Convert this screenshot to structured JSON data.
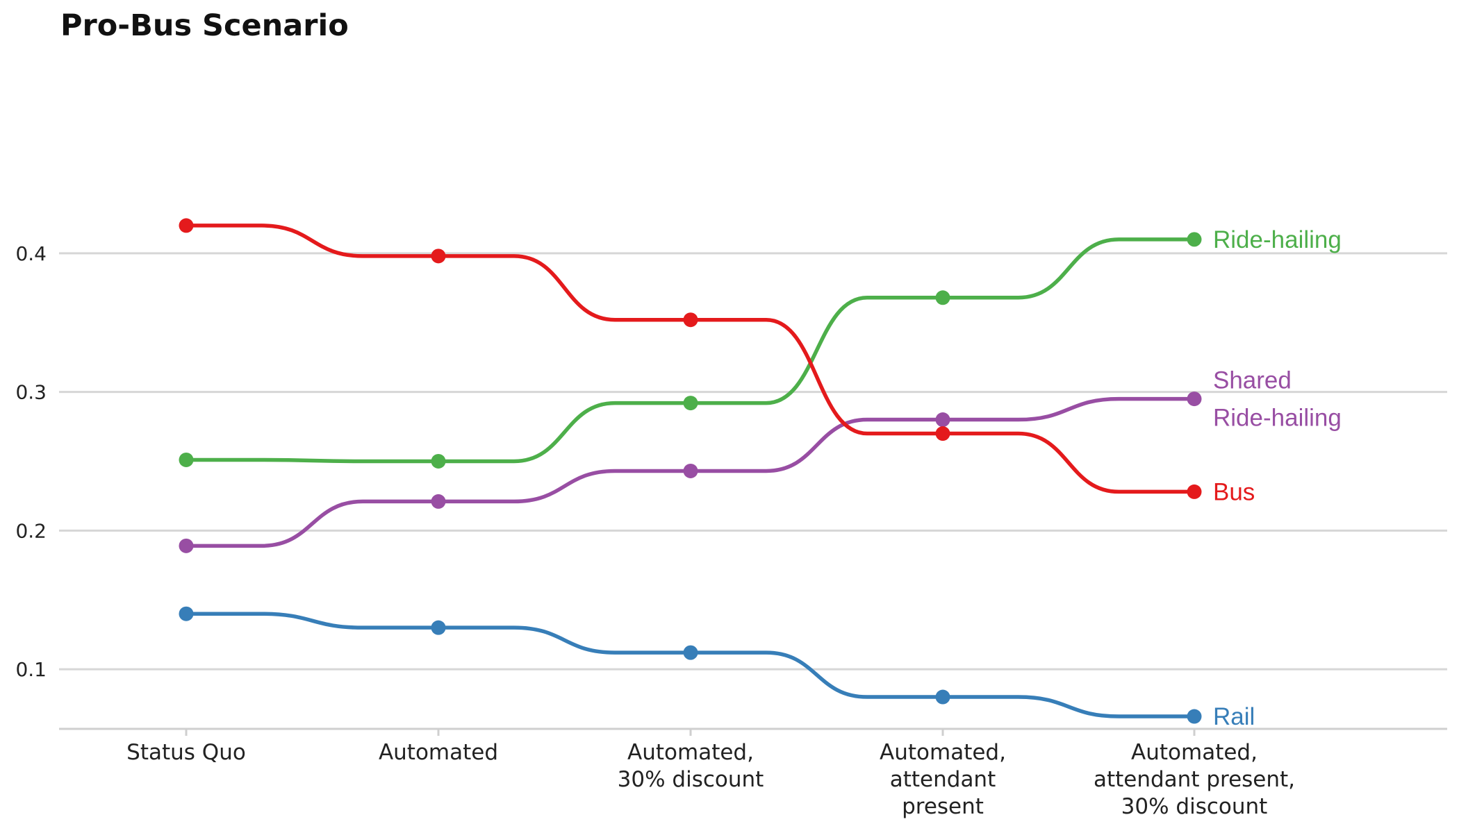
{
  "chart_data": {
    "type": "line",
    "title": "Pro-Bus Scenario",
    "xlabel": "",
    "ylabel": "",
    "categories": [
      "Status Quo",
      "Automated",
      "Automated,\n30% discount",
      "Automated,\nattendant\npresent",
      "Automated,\nattendant present,\n30% discount"
    ],
    "yticks": [
      "0.1",
      "0.2",
      "0.3",
      "0.4"
    ],
    "ylim": [
      0.057,
      0.46
    ],
    "grid": true,
    "legend": "direct labels at line ends",
    "series": [
      {
        "name": "Ride-hailing",
        "label_lines": [
          "Ride-hailing"
        ],
        "color": "#4daf4a",
        "values": [
          0.251,
          0.25,
          0.292,
          0.368,
          0.41
        ]
      },
      {
        "name": "Shared Ride-hailing",
        "label_lines": [
          "Shared",
          "Ride-hailing"
        ],
        "color": "#984ea3",
        "values": [
          0.189,
          0.221,
          0.243,
          0.28,
          0.295
        ]
      },
      {
        "name": "Bus",
        "label_lines": [
          "Bus"
        ],
        "color": "#e41a1c",
        "values": [
          0.42,
          0.398,
          0.352,
          0.27,
          0.228
        ]
      },
      {
        "name": "Rail",
        "label_lines": [
          "Rail"
        ],
        "color": "#377eb8",
        "values": [
          0.14,
          0.13,
          0.112,
          0.08,
          0.066
        ]
      }
    ]
  }
}
